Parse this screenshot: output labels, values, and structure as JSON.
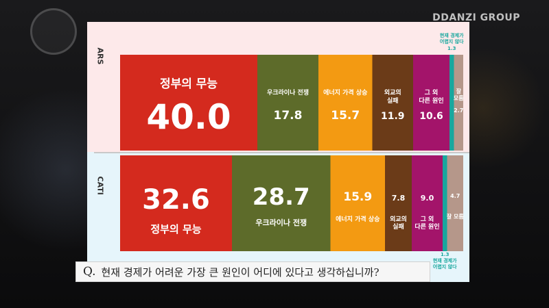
{
  "brand": "DDANZI GROUP",
  "question": {
    "mark": "Q.",
    "text": "현재 경제가 어려운 가장 큰 원인이 어디에 있다고 생각하십니까?"
  },
  "colors": {
    "정부의 무능": "#d42a1e",
    "우크라이나 전쟁": "#5d6b2a",
    "에너지 가격 상승": "#f39a12",
    "외교의 실패": "#6b3b18",
    "그 외 다른 원인": "#a3146a",
    "현재 경제가 어렵지 않다": "#18a79e",
    "잘 모름": "#b5978a"
  },
  "chart_data": [
    {
      "type": "bar",
      "stacked": "horizontal-100%",
      "series_label": "ARS",
      "segments": [
        {
          "label": "정부의 무능",
          "value": 40.0
        },
        {
          "label": "우크라이나 전쟁",
          "value": 17.8
        },
        {
          "label": "에너지 가격 상승",
          "value": 15.7
        },
        {
          "label": "외교의 실패",
          "value": 11.9
        },
        {
          "label": "그 외 다른 원인",
          "value": 10.6
        },
        {
          "label": "현재 경제가 어렵지 않다",
          "value": 1.3
        },
        {
          "label": "잘 모름",
          "value": 2.7
        }
      ]
    },
    {
      "type": "bar",
      "stacked": "horizontal-100%",
      "series_label": "CATI",
      "segments": [
        {
          "label": "정부의 무능",
          "value": 32.6
        },
        {
          "label": "우크라이나 전쟁",
          "value": 28.7
        },
        {
          "label": "에너지 가격 상승",
          "value": 15.9
        },
        {
          "label": "외교의 실패",
          "value": 7.8
        },
        {
          "label": "그 외 다른 원인",
          "value": 9.0
        },
        {
          "label": "현재 경제가 어렵지 않다",
          "value": 1.3
        },
        {
          "label": "잘 모름",
          "value": 4.7
        }
      ]
    }
  ]
}
